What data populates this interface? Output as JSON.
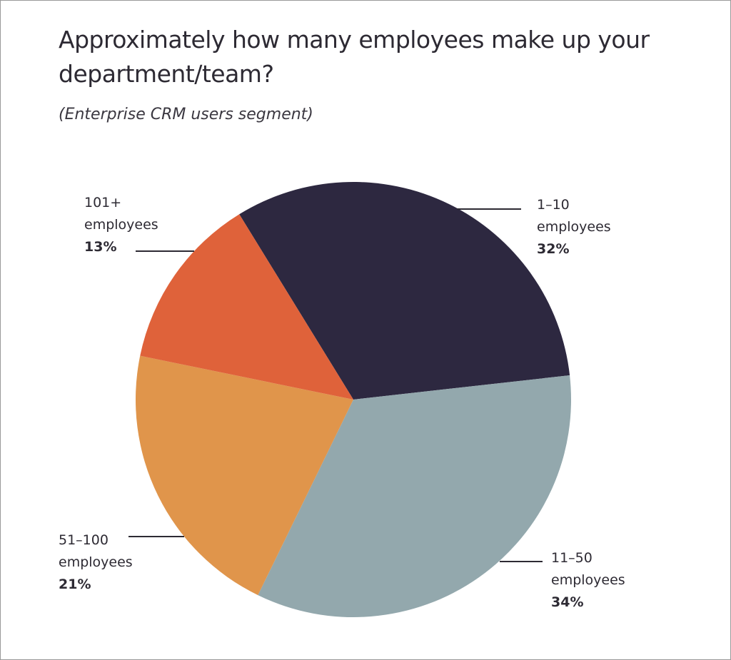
{
  "chart_data": {
    "type": "pie",
    "title": "Approximately how many employees make up your department/team?",
    "subtitle": "(Enterprise CRM users segment)",
    "categories": [
      "1–10 employees",
      "11–50 employees",
      "51–100 employees",
      "101+ employees"
    ],
    "values": [
      32,
      34,
      21,
      13
    ],
    "value_labels": [
      "32%",
      "34%",
      "21%",
      "13%"
    ],
    "colors": [
      "#2d2840",
      "#93a8ad",
      "#e0954b",
      "#df623a"
    ]
  }
}
